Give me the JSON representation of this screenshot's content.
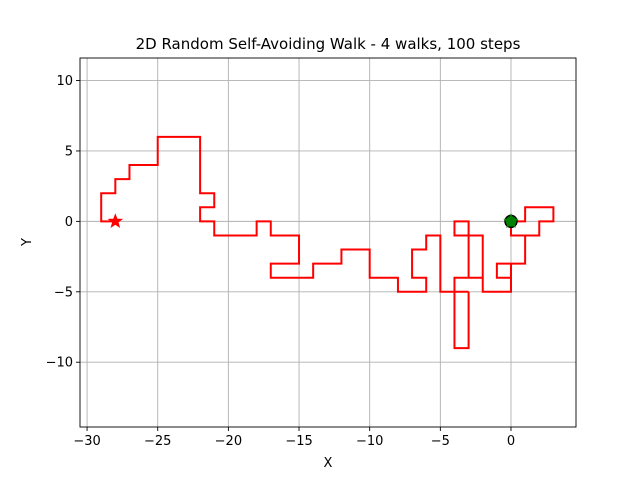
{
  "chart_data": {
    "type": "line",
    "title": "2D Random Self-Avoiding Walk - 4 walks, 100 steps",
    "xlabel": "X",
    "ylabel": "Y",
    "xlim": [
      -30.5,
      4.6
    ],
    "ylim": [
      -14.6,
      11.6
    ],
    "xticks": [
      -30,
      -25,
      -20,
      -15,
      -10,
      -5,
      0
    ],
    "yticks": [
      -10,
      -5,
      0,
      5,
      10
    ],
    "xtick_labels": [
      "−30",
      "−25",
      "−20",
      "−15",
      "−10",
      "−5",
      "0"
    ],
    "ytick_labels": [
      "−10",
      "−5",
      "0",
      "5",
      "10"
    ],
    "grid": true,
    "series": [
      {
        "color": "#ff0000",
        "x": [
          0,
          0,
          1,
          1,
          0,
          0,
          -1,
          -1,
          0,
          0,
          -2,
          -2,
          -3,
          -3,
          -4,
          -4,
          -3,
          -3,
          -2,
          -2,
          -4,
          -4,
          -5,
          -5,
          -6,
          -6,
          -7,
          -7,
          -6,
          -6,
          -8,
          -8,
          -10,
          -10,
          -12,
          -12,
          -14,
          -14,
          -17,
          -17,
          -15,
          -15,
          -17,
          -17,
          -18,
          -18,
          -21,
          -21,
          -22,
          -22,
          -21,
          -21,
          -22,
          -22,
          -25,
          -25,
          -27,
          -27,
          -28,
          -28,
          -29,
          -29,
          -28
        ],
        "y": [
          0,
          -1,
          -1,
          -3,
          -3,
          -4,
          -4,
          -3,
          -3,
          -5,
          -5,
          -4,
          -4,
          -1,
          -1,
          0,
          0,
          -1,
          -1,
          -4,
          -4,
          -5,
          -5,
          -1,
          -1,
          -2,
          -2,
          -4,
          -4,
          -5,
          -5,
          -4,
          -4,
          -2,
          -2,
          -3,
          -3,
          -4,
          -4,
          -3,
          -3,
          -1,
          -1,
          0,
          0,
          -1,
          -1,
          0,
          0,
          1,
          1,
          2,
          2,
          6,
          6,
          4,
          4,
          3,
          3,
          2,
          2,
          0,
          0
        ]
      },
      {
        "color": "#ff0000",
        "x": [
          0,
          1,
          1,
          3,
          3,
          2,
          2,
          0
        ],
        "y": [
          0,
          0,
          1,
          1,
          0,
          0,
          -1,
          -1
        ]
      },
      {
        "color": "#ff0000",
        "x": [
          -3,
          -3,
          -4,
          -4,
          -3
        ],
        "y": [
          -5,
          -9,
          -9,
          -5,
          -5
        ]
      }
    ],
    "markers": [
      {
        "type": "circle",
        "x": 0,
        "y": 0,
        "color": "#008000",
        "edge": "#000000"
      },
      {
        "type": "star",
        "x": 0,
        "y": 0,
        "color": "#008000"
      },
      {
        "type": "star",
        "x": -28,
        "y": 0,
        "color": "#ff0000"
      }
    ]
  }
}
